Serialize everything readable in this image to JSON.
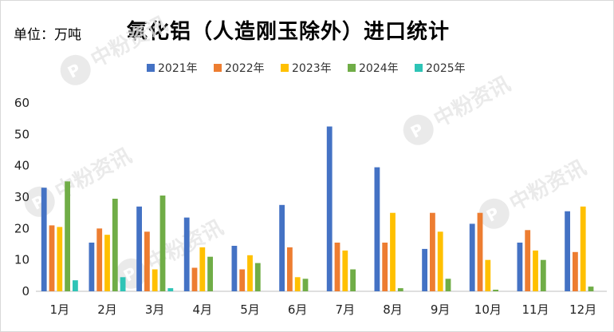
{
  "unit_label": "单位：万吨",
  "watermark": "中粉资讯",
  "chart_data": {
    "type": "bar",
    "title": "氧化铝（人造刚玉除外）进口统计",
    "categories": [
      "1月",
      "2月",
      "3月",
      "4月",
      "5月",
      "6月",
      "7月",
      "8月",
      "9月",
      "10月",
      "11月",
      "12月"
    ],
    "ylim": [
      0,
      60
    ],
    "yticks": [
      0,
      10,
      20,
      30,
      40,
      50,
      60
    ],
    "legend_position": "top",
    "grid": false,
    "series": [
      {
        "name": "2021年",
        "color": "#4472c4",
        "values": [
          33,
          15.5,
          27,
          23.5,
          14.5,
          27.5,
          52.5,
          39.5,
          13.5,
          21.5,
          15.5,
          25.5
        ]
      },
      {
        "name": "2022年",
        "color": "#ed7d31",
        "values": [
          21,
          20,
          19,
          7.5,
          7,
          14,
          15.5,
          15.5,
          25,
          25,
          19.5,
          12.5
        ]
      },
      {
        "name": "2023年",
        "color": "#ffc000",
        "values": [
          20.5,
          18,
          7,
          14,
          11.5,
          4.5,
          13,
          25,
          19,
          10,
          13,
          27
        ]
      },
      {
        "name": "2024年",
        "color": "#70ad47",
        "values": [
          35,
          29.5,
          30.5,
          11,
          9,
          4,
          7,
          1,
          4,
          0.5,
          10,
          1.5
        ]
      },
      {
        "name": "2025年",
        "color": "#2ec4b6",
        "values": [
          3.5,
          4.5,
          1,
          null,
          null,
          null,
          null,
          null,
          null,
          null,
          null,
          null
        ]
      }
    ]
  }
}
